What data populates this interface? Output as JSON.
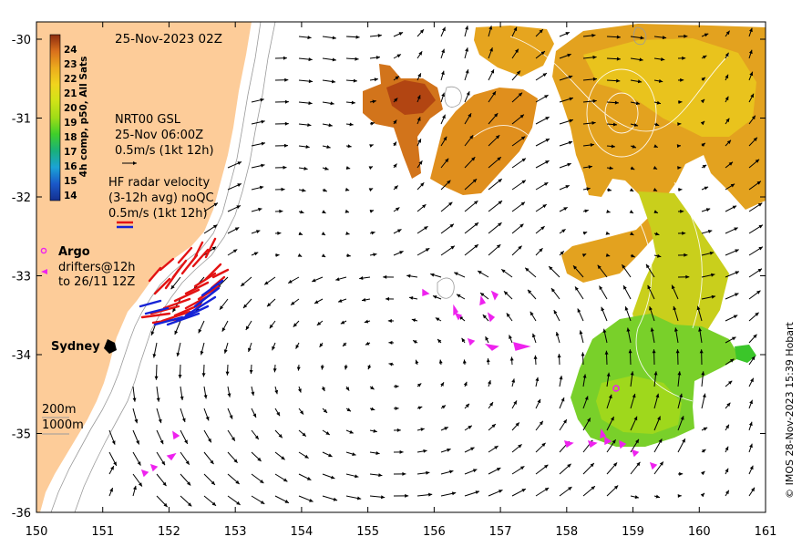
{
  "map": {
    "date_label": "25-Nov-2023 02Z",
    "colorbar": {
      "label": "4h comp, p50, All Sats",
      "ticks": [
        "24",
        "23",
        "22",
        "21",
        "20",
        "19",
        "18",
        "17",
        "16",
        "15",
        "14"
      ],
      "colors": [
        "#8b2a0e",
        "#d9701c",
        "#ecab1d",
        "#f0d51d",
        "#d0e317",
        "#9fdc17",
        "#3fcf2a",
        "#19b07a",
        "#1ba3d6",
        "#1a58c9",
        "#142f8f"
      ]
    },
    "legend": {
      "nrt_line1": "NRT00 GSL",
      "nrt_line2": "25-Nov 06:00Z",
      "nrt_line3": "0.5m/s (1kt 12h)",
      "hf_line1": "HF radar velocity",
      "hf_line2": "(3-12h avg) noQC",
      "hf_line3": "0.5m/s (1kt 12h)",
      "argo_label": "Argo",
      "drifter_line1": "drifters@12h",
      "drifter_line2": "to 26/11 12Z",
      "depth_200": "200m",
      "depth_1000": "1000m"
    },
    "place_label": "Sydney",
    "credit": "© IMOS 28-Nov-2023 15:39 Hobart",
    "x_ticks": [
      "150",
      "151",
      "152",
      "153",
      "154",
      "155",
      "156",
      "157",
      "158",
      "159",
      "160",
      "161"
    ],
    "y_ticks": [
      "-30",
      "-31",
      "-32",
      "-33",
      "-34",
      "-35",
      "-36"
    ],
    "colors": {
      "land": "#fdcc99",
      "hf_red": "#e31313",
      "hf_blue": "#1523d6",
      "drifter": "#ee22ee",
      "warm": "#e39222",
      "hot": "#b94511",
      "cool": "#76d42c"
    },
    "icons": [
      "nrt-arrow-icon",
      "hf-radar-arrow-icon",
      "argo-marker-icon",
      "drifter-arrow-icon",
      "sydney-city-marker-icon"
    ]
  }
}
